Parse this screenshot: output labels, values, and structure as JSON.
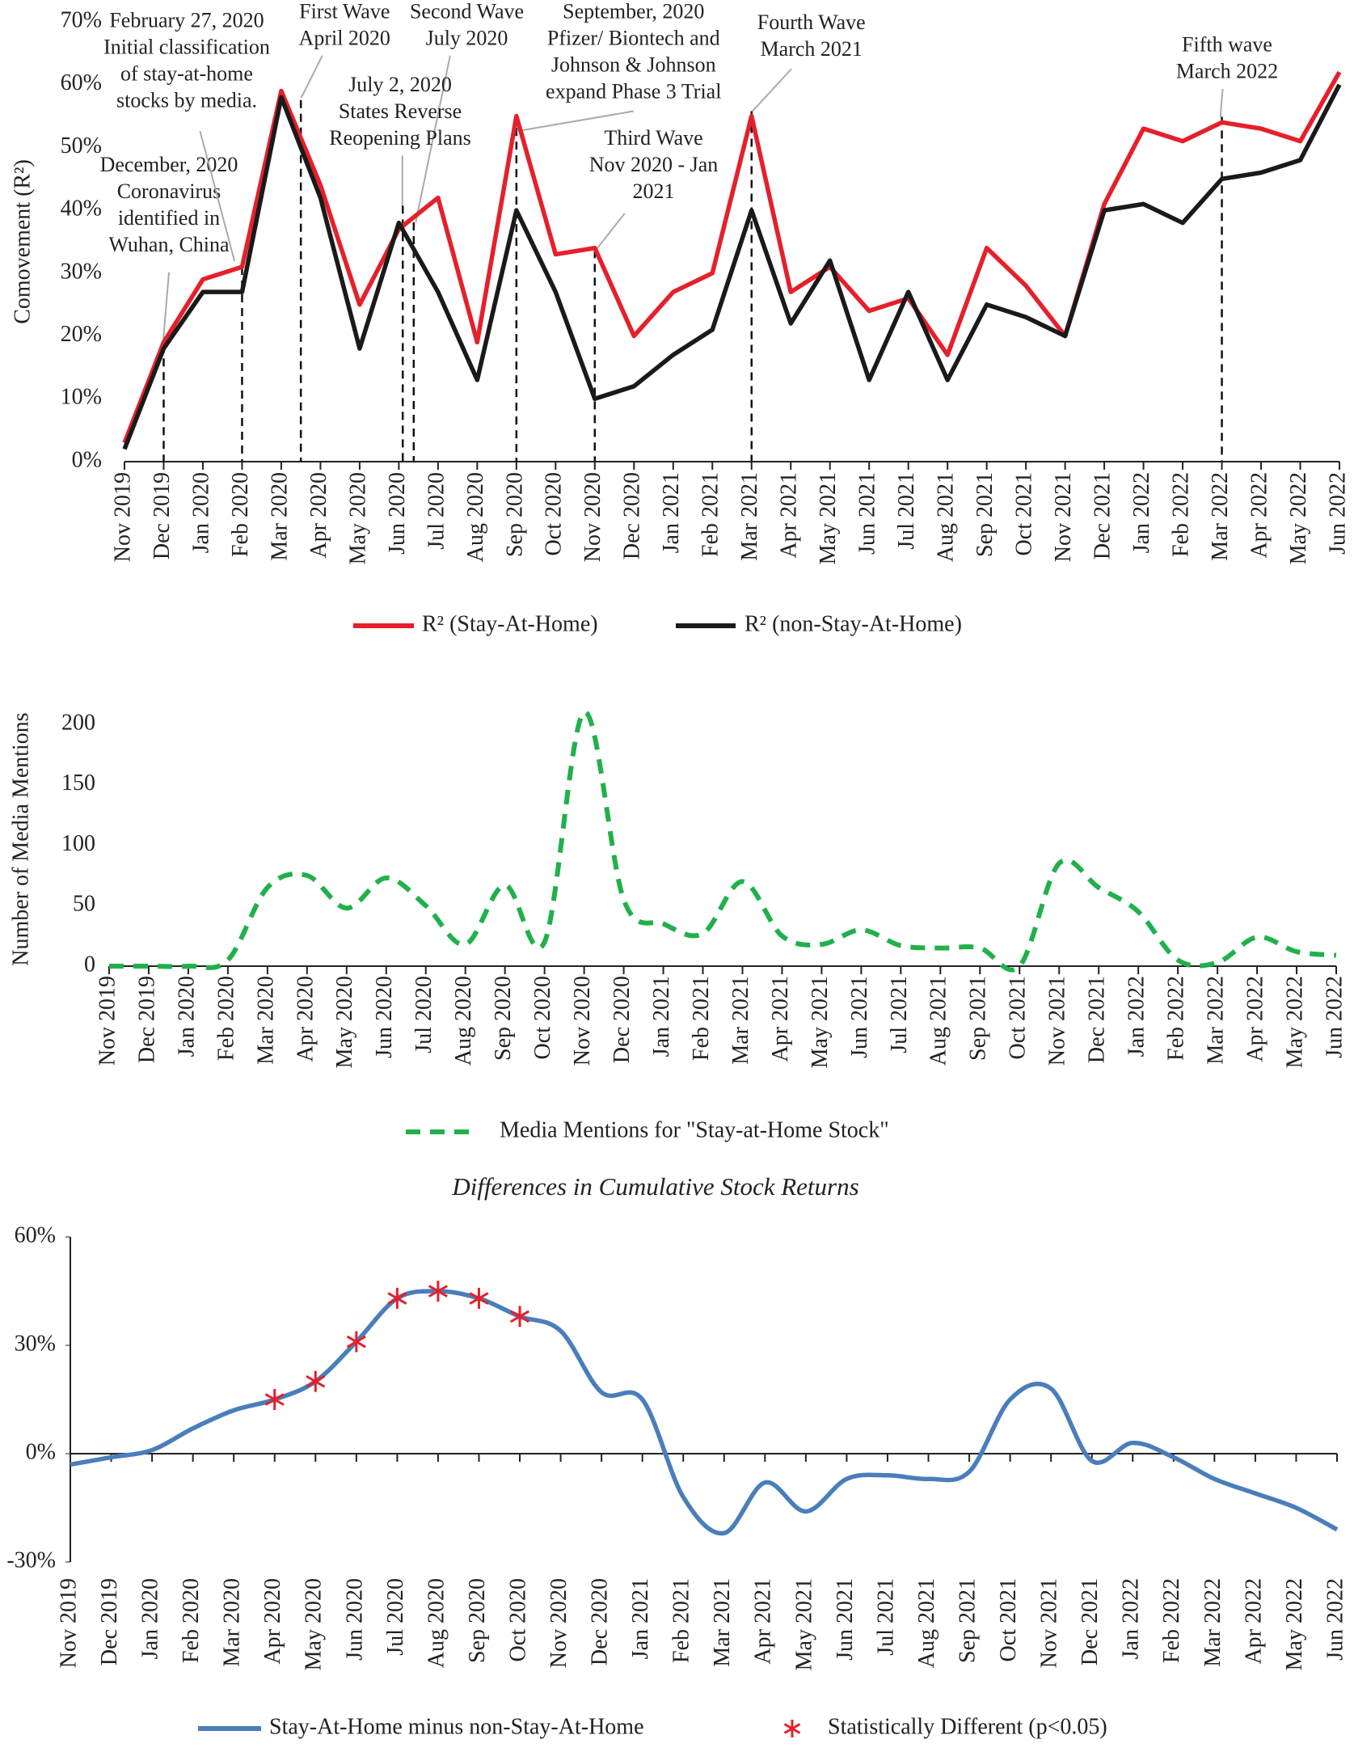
{
  "chart_data": [
    {
      "type": "line",
      "y_label": "Comovement (R²)",
      "categories": [
        "Nov 2019",
        "Dec 2019",
        "Jan 2020",
        "Feb 2020",
        "Mar 2020",
        "Apr 2020",
        "May 2020",
        "Jun 2020",
        "Jul 2020",
        "Aug 2020",
        "Sep 2020",
        "Oct 2020",
        "Nov 2020",
        "Dec 2020",
        "Jan 2021",
        "Feb 2021",
        "Mar 2021",
        "Apr 2021",
        "May 2021",
        "Jun 2021",
        "Jul 2021",
        "Aug 2021",
        "Sep 2021",
        "Oct 2021",
        "Nov 2021",
        "Dec 2021",
        "Jan 2022",
        "Feb 2022",
        "Mar 2022",
        "Apr 2022",
        "May 2022",
        "Jun 2022"
      ],
      "series": [
        {
          "name": "R² (Stay-At-Home)",
          "color": "#e5202b",
          "values": [
            3,
            19,
            29,
            31,
            59,
            44,
            25,
            37,
            42,
            19,
            55,
            33,
            34,
            20,
            27,
            30,
            55,
            27,
            31,
            24,
            26,
            17,
            34,
            28,
            20,
            41,
            53,
            51,
            54,
            53,
            51,
            62
          ]
        },
        {
          "name": "R² (non-Stay-At-Home)",
          "color": "#1a1a1a",
          "values": [
            2,
            18,
            27,
            27,
            58,
            42,
            18,
            38,
            27,
            13,
            40,
            27,
            10,
            12,
            17,
            21,
            40,
            22,
            32,
            13,
            27,
            13,
            25,
            23,
            20,
            40,
            41,
            38,
            45,
            46,
            48,
            60
          ]
        }
      ],
      "ylim": [
        0,
        70
      ],
      "yticks": [
        {
          "value": 0,
          "label": "0%"
        },
        {
          "value": 10,
          "label": "10%"
        },
        {
          "value": 20,
          "label": "20%"
        },
        {
          "value": 30,
          "label": "30%"
        },
        {
          "value": 40,
          "label": "40%"
        },
        {
          "value": 50,
          "label": "50%"
        },
        {
          "value": 60,
          "label": "60%"
        },
        {
          "value": 70,
          "label": "70%"
        }
      ],
      "annotations": [
        [
          "December, 2020",
          "Coronavirus",
          "identified in",
          "Wuhan, China"
        ],
        [
          "February 27, 2020",
          "Initial classification",
          "of stay-at-home",
          "stocks by media."
        ],
        [
          "First Wave",
          "April 2020"
        ],
        [
          "Second Wave",
          "July 2020"
        ],
        [
          "July 2, 2020",
          "States Reverse",
          "Reopening Plans"
        ],
        [
          "September, 2020",
          "Pfizer/ Biontech and",
          "Johnson & Johnson",
          "expand Phase 3 Trial"
        ],
        [
          "Third Wave",
          "Nov 2020 - Jan",
          "2021"
        ],
        [
          "Fourth Wave",
          "March 2021"
        ],
        [
          "Fifth wave",
          "March 2022"
        ]
      ],
      "legend": "bottom"
    },
    {
      "type": "line",
      "y_label": "Number of Media Mentions",
      "categories": [
        "Nov 2019",
        "Dec 2019",
        "Jan 2020",
        "Feb 2020",
        "Mar 2020",
        "Apr 2020",
        "May 2020",
        "Jun 2020",
        "Jul 2020",
        "Aug 2020",
        "Sep 2020",
        "Oct 2020",
        "Nov 2020",
        "Dec 2020",
        "Jan 2021",
        "Feb 2021",
        "Mar 2021",
        "Apr 2021",
        "May 2021",
        "Jun 2021",
        "Jul 2021",
        "Aug 2021",
        "Sep 2021",
        "Oct 2021",
        "Nov 2021",
        "Dec 2021",
        "Jan 2022",
        "Feb 2022",
        "Mar 2022",
        "Apr 2022",
        "May 2022",
        "Jun 2022"
      ],
      "series": [
        {
          "name": "Media Mentions for \"Stay-at-Home Stock\"",
          "color": "#21b04b",
          "dashed": true,
          "smooth": true,
          "values": [
            0,
            0,
            0,
            5,
            65,
            75,
            48,
            73,
            50,
            18,
            67,
            20,
            210,
            55,
            35,
            27,
            70,
            25,
            18,
            30,
            17,
            15,
            15,
            0,
            85,
            65,
            45,
            5,
            3,
            24,
            12,
            9
          ]
        }
      ],
      "ylim": [
        0,
        210
      ],
      "yticks": [
        0,
        50,
        100,
        150,
        200
      ],
      "legend": "bottom"
    },
    {
      "type": "line",
      "title": "Differences in Cumulative Stock Returns",
      "categories": [
        "Nov 2019",
        "Dec 2019",
        "Jan 2020",
        "Feb 2020",
        "Mar 2020",
        "Apr 2020",
        "May 2020",
        "Jun 2020",
        "Jul 2020",
        "Aug 2020",
        "Sep 2020",
        "Oct 2020",
        "Nov 2020",
        "Dec 2020",
        "Jan 2021",
        "Feb 2021",
        "Mar 2021",
        "Apr 2021",
        "May 2021",
        "Jun 2021",
        "Jul 2021",
        "Aug 2021",
        "Sep 2021",
        "Oct 2021",
        "Nov 2021",
        "Dec 2021",
        "Jan 2022",
        "Feb 2022",
        "Mar 2022",
        "Apr 2022",
        "May 2022",
        "Jun 2022"
      ],
      "series": [
        {
          "name": "Stay-At-Home minus non-Stay-At-Home",
          "color": "#4a7ebb",
          "smooth": true,
          "values": [
            -3,
            -1,
            1,
            7,
            12,
            15,
            20,
            31,
            43,
            45,
            43,
            38,
            34,
            17,
            15,
            -12,
            -22,
            -8,
            -16,
            -7,
            -6,
            -7,
            -5,
            15,
            18,
            -2,
            3,
            -1,
            -7,
            -11,
            -15,
            -21
          ]
        },
        {
          "name": "Statistically Different (p<0.05)",
          "color": "#e5202b",
          "marker": "asterisk",
          "values": [
            null,
            null,
            null,
            null,
            null,
            15,
            20,
            31,
            43,
            45,
            43,
            38,
            null,
            null,
            null,
            null,
            null,
            null,
            null,
            null,
            null,
            null,
            null,
            null,
            null,
            null,
            null,
            null,
            null,
            null,
            null,
            null
          ]
        }
      ],
      "ylim": [
        -30,
        60
      ],
      "yticks": [
        {
          "value": -30,
          "label": "-30%"
        },
        {
          "value": 0,
          "label": "0%"
        },
        {
          "value": 30,
          "label": "30%"
        },
        {
          "value": 60,
          "label": "60%"
        }
      ],
      "legend": "bottom"
    }
  ]
}
